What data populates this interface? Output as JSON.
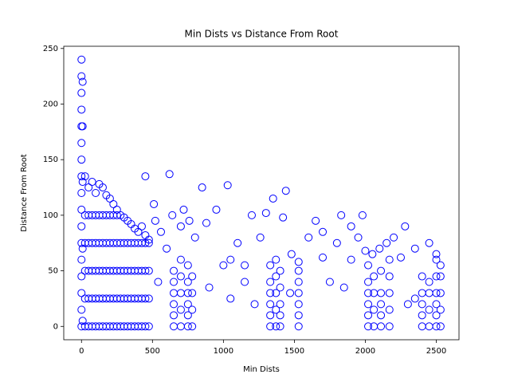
{
  "chart_data": {
    "type": "scatter",
    "title": "Min Dists vs Distance From Root",
    "xlabel": "Min Dists",
    "ylabel": "Distance From Root",
    "color": "#0000ff",
    "xlim": [
      -125,
      2660
    ],
    "ylim": [
      -12,
      252
    ],
    "xticks": [
      0,
      500,
      1000,
      1500,
      2000,
      2500
    ],
    "yticks": [
      0,
      50,
      100,
      150,
      200,
      250
    ],
    "x": [
      0,
      0,
      0,
      0,
      0,
      0,
      0,
      0,
      0,
      0,
      0,
      0,
      0,
      0,
      0,
      0,
      0,
      8,
      8,
      8,
      8,
      8,
      25,
      25,
      25,
      25,
      25,
      50,
      50,
      50,
      50,
      50,
      75,
      75,
      75,
      75,
      75,
      100,
      100,
      100,
      100,
      100,
      125,
      125,
      125,
      125,
      125,
      150,
      150,
      150,
      150,
      150,
      175,
      175,
      175,
      175,
      175,
      200,
      200,
      200,
      200,
      200,
      225,
      225,
      225,
      225,
      225,
      250,
      250,
      250,
      250,
      250,
      275,
      275,
      275,
      275,
      275,
      300,
      300,
      300,
      300,
      300,
      325,
      325,
      325,
      325,
      325,
      350,
      350,
      350,
      350,
      350,
      375,
      375,
      375,
      375,
      375,
      400,
      400,
      400,
      400,
      400,
      425,
      425,
      425,
      425,
      425,
      450,
      450,
      450,
      450,
      450,
      475,
      475,
      475,
      475,
      475,
      25,
      50,
      75,
      100,
      125,
      150,
      175,
      200,
      225,
      250,
      450,
      510,
      520,
      560,
      600,
      620,
      640,
      700,
      720,
      760,
      800,
      850,
      880,
      950,
      1030,
      1050,
      1100,
      1150,
      1200,
      1260,
      1300,
      1350,
      1420,
      1440,
      1480,
      1600,
      1650,
      1700,
      1800,
      1830,
      1900,
      1950,
      1980,
      2050,
      2100,
      2150,
      2200,
      2280,
      2350,
      2450,
      2500,
      540,
      900,
      1050,
      1220,
      1470,
      1750,
      1850,
      2300,
      2350,
      1000,
      1150,
      1700,
      1900,
      2000,
      2250,
      650,
      650,
      650,
      650,
      650,
      650,
      700,
      700,
      700,
      700,
      700,
      750,
      750,
      750,
      750,
      750,
      750,
      780,
      780,
      780,
      780,
      1330,
      1330,
      1330,
      1330,
      1330,
      1330,
      1370,
      1370,
      1370,
      1370,
      1370,
      1400,
      1400,
      1400,
      1400,
      1400,
      1530,
      1530,
      1530,
      1530,
      1530,
      1530,
      1530,
      2020,
      2020,
      2020,
      2020,
      2020,
      2020,
      2060,
      2060,
      2060,
      2060,
      2110,
      2110,
      2110,
      2110,
      2110,
      2170,
      2170,
      2170,
      2170,
      2170,
      2400,
      2400,
      2400,
      2400,
      2400,
      2450,
      2450,
      2450,
      2450,
      2500,
      2500,
      2500,
      2500,
      2500,
      2500,
      2530,
      2530,
      2530,
      2530,
      2530
    ],
    "values": [
      0,
      15,
      30,
      45,
      60,
      75,
      90,
      105,
      120,
      135,
      150,
      165,
      180,
      195,
      210,
      225,
      240,
      5,
      70,
      130,
      180,
      220,
      0,
      25,
      50,
      75,
      135,
      0,
      25,
      50,
      75,
      125,
      0,
      25,
      50,
      75,
      130,
      0,
      25,
      50,
      75,
      120,
      0,
      25,
      50,
      75,
      128,
      0,
      25,
      50,
      75,
      125,
      0,
      25,
      50,
      75,
      118,
      0,
      25,
      50,
      75,
      115,
      0,
      25,
      50,
      75,
      110,
      0,
      25,
      50,
      75,
      105,
      0,
      25,
      50,
      75,
      100,
      0,
      25,
      50,
      75,
      98,
      0,
      25,
      50,
      75,
      95,
      0,
      25,
      50,
      75,
      92,
      0,
      25,
      50,
      75,
      88,
      0,
      25,
      50,
      75,
      85,
      0,
      25,
      50,
      75,
      90,
      0,
      25,
      50,
      75,
      82,
      0,
      25,
      50,
      75,
      78,
      100,
      100,
      100,
      100,
      100,
      100,
      100,
      100,
      100,
      100,
      135,
      110,
      95,
      85,
      70,
      137,
      100,
      90,
      105,
      95,
      80,
      125,
      93,
      105,
      127,
      60,
      75,
      55,
      100,
      80,
      102,
      115,
      98,
      122,
      65,
      80,
      95,
      85,
      75,
      100,
      90,
      80,
      100,
      65,
      70,
      75,
      80,
      90,
      70,
      75,
      65,
      40,
      35,
      25,
      20,
      30,
      40,
      35,
      20,
      25,
      55,
      40,
      62,
      60,
      68,
      62,
      0,
      10,
      20,
      30,
      40,
      50,
      0,
      15,
      30,
      45,
      60,
      0,
      10,
      20,
      30,
      40,
      55,
      0,
      15,
      30,
      45,
      0,
      10,
      20,
      30,
      40,
      55,
      0,
      15,
      30,
      45,
      60,
      0,
      10,
      20,
      35,
      50,
      0,
      10,
      20,
      30,
      40,
      50,
      58,
      0,
      10,
      20,
      30,
      40,
      55,
      0,
      15,
      30,
      45,
      0,
      10,
      20,
      30,
      50,
      0,
      15,
      30,
      45,
      60,
      0,
      10,
      20,
      30,
      45,
      0,
      15,
      30,
      40,
      0,
      10,
      20,
      30,
      45,
      60,
      0,
      15,
      30,
      45,
      55
    ]
  }
}
